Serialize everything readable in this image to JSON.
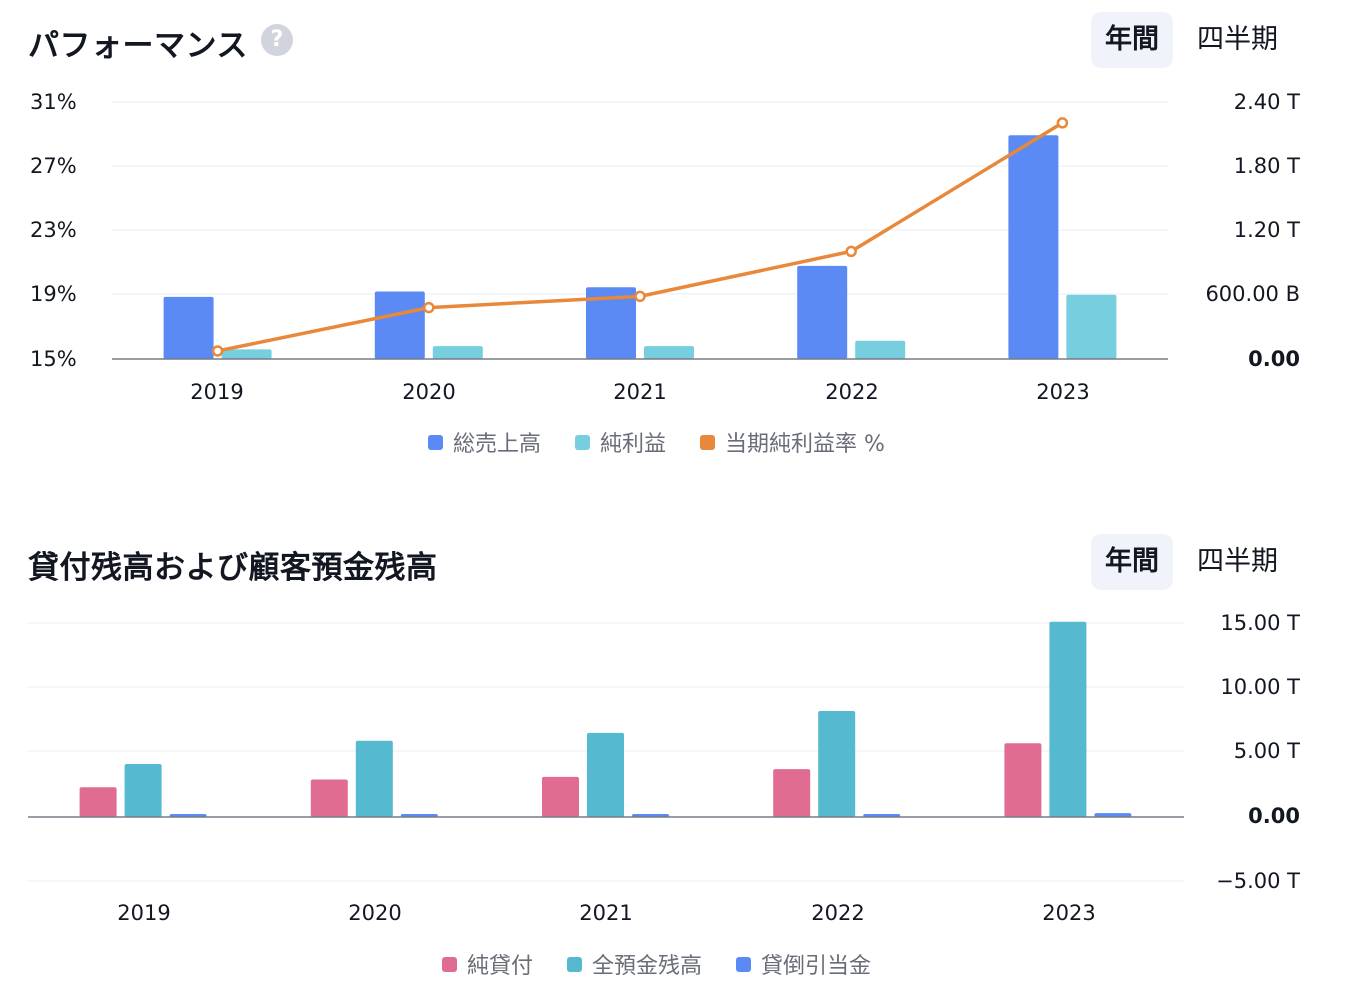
{
  "performance": {
    "title": "パフォーマンス",
    "help_glyph": "?",
    "toggle": {
      "annual": "年間",
      "quarterly": "四半期",
      "active": "annual"
    },
    "left_ticks": [
      "31%",
      "27%",
      "23%",
      "19%",
      "15%"
    ],
    "right_ticks": [
      "2.40 T",
      "1.80 T",
      "1.20 T",
      "600.00 B",
      "0.00"
    ],
    "legend": [
      {
        "label": "総売上高",
        "color": "#5b8af5"
      },
      {
        "label": "純利益",
        "color": "#76cedf"
      },
      {
        "label": "当期純利益率 %",
        "color": "#e8883a"
      }
    ]
  },
  "loans": {
    "title": "貸付残高および顧客預金残高",
    "toggle": {
      "annual": "年間",
      "quarterly": "四半期",
      "active": "annual"
    },
    "right_ticks": [
      "15.00 T",
      "10.00 T",
      "5.00 T",
      "0.00",
      "−5.00 T"
    ],
    "legend": [
      {
        "label": "純貸付",
        "color": "#e06c92"
      },
      {
        "label": "全預金残高",
        "color": "#55b9d0"
      },
      {
        "label": "貸倒引当金",
        "color": "#5b8af5"
      }
    ]
  },
  "chart_data": [
    {
      "type": "bar",
      "categories": [
        "2019",
        "2020",
        "2021",
        "2022",
        "2023"
      ],
      "series": [
        {
          "name": "総売上高",
          "values": [
            0.58,
            0.63,
            0.67,
            0.87,
            2.09
          ],
          "axis": "right",
          "unit": "T"
        },
        {
          "name": "純利益",
          "values": [
            0.09,
            0.12,
            0.12,
            0.17,
            0.6
          ],
          "axis": "right",
          "unit": "T"
        },
        {
          "name": "当期純利益率 %",
          "type": "line",
          "values": [
            15.5,
            18.2,
            18.9,
            21.7,
            29.7
          ],
          "axis": "left",
          "unit": "%"
        }
      ],
      "ylim_left": [
        15,
        31
      ],
      "ylim_right": [
        0,
        2.4
      ],
      "grid": true,
      "legend_position": "bottom"
    },
    {
      "type": "bar",
      "categories": [
        "2019",
        "2020",
        "2021",
        "2022",
        "2023"
      ],
      "series": [
        {
          "name": "純貸付",
          "values": [
            2.3,
            2.9,
            3.1,
            3.7,
            5.7
          ],
          "unit": "T"
        },
        {
          "name": "全預金残高",
          "values": [
            4.1,
            5.9,
            6.5,
            8.2,
            15.1
          ],
          "unit": "T"
        },
        {
          "name": "貸倒引当金",
          "values": [
            0.2,
            0.2,
            0.2,
            0.2,
            0.3
          ],
          "unit": "T"
        }
      ],
      "ylim": [
        -5,
        15
      ],
      "grid": true,
      "legend_position": "bottom"
    }
  ]
}
